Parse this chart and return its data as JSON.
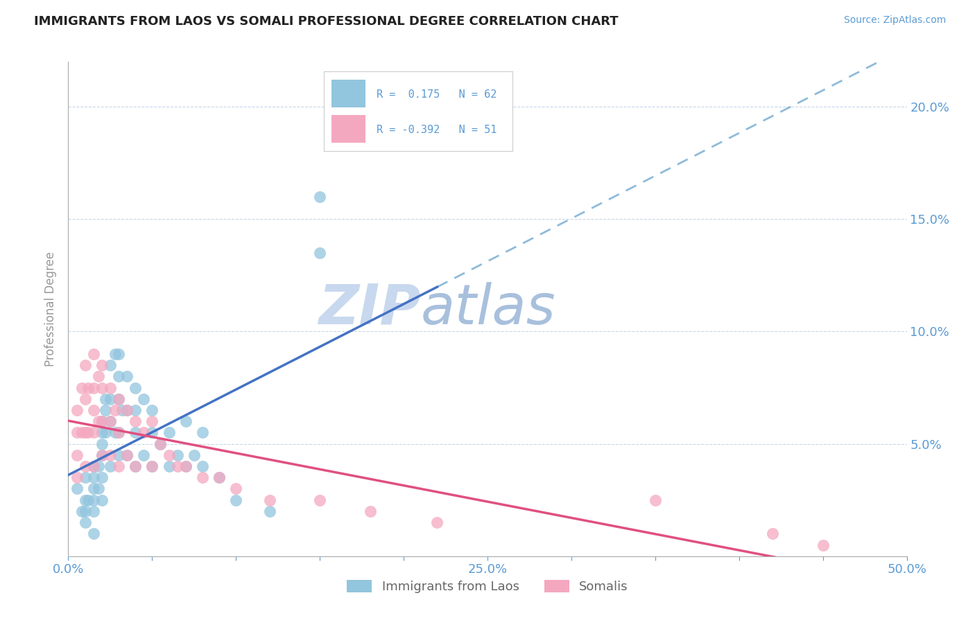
{
  "title": "IMMIGRANTS FROM LAOS VS SOMALI PROFESSIONAL DEGREE CORRELATION CHART",
  "source": "Source: ZipAtlas.com",
  "ylabel": "Professional Degree",
  "xmin": 0.0,
  "xmax": 0.5,
  "ymin": 0.0,
  "ymax": 0.22,
  "yticks": [
    0.0,
    0.05,
    0.1,
    0.15,
    0.2
  ],
  "ytick_labels": [
    "",
    "5.0%",
    "10.0%",
    "15.0%",
    "20.0%"
  ],
  "R_laos": 0.175,
  "N_laos": 62,
  "R_somali": -0.392,
  "N_somali": 51,
  "color_laos": "#92c5de",
  "color_somali": "#f4a8c0",
  "axis_color": "#5b9bd5",
  "watermark_zip_color": "#c8d8ee",
  "watermark_atlas_color": "#b8cce4",
  "background_color": "#ffffff",
  "laos_x": [
    0.005,
    0.008,
    0.01,
    0.01,
    0.01,
    0.01,
    0.012,
    0.015,
    0.015,
    0.015,
    0.015,
    0.015,
    0.015,
    0.018,
    0.018,
    0.02,
    0.02,
    0.02,
    0.02,
    0.02,
    0.02,
    0.022,
    0.022,
    0.022,
    0.025,
    0.025,
    0.025,
    0.025,
    0.028,
    0.028,
    0.03,
    0.03,
    0.03,
    0.03,
    0.03,
    0.032,
    0.035,
    0.035,
    0.035,
    0.04,
    0.04,
    0.04,
    0.04,
    0.045,
    0.045,
    0.05,
    0.05,
    0.05,
    0.055,
    0.06,
    0.06,
    0.065,
    0.07,
    0.07,
    0.075,
    0.08,
    0.08,
    0.09,
    0.1,
    0.12,
    0.15,
    0.15
  ],
  "laos_y": [
    0.03,
    0.02,
    0.035,
    0.025,
    0.02,
    0.015,
    0.025,
    0.04,
    0.035,
    0.03,
    0.025,
    0.02,
    0.01,
    0.04,
    0.03,
    0.06,
    0.055,
    0.05,
    0.045,
    0.035,
    0.025,
    0.07,
    0.065,
    0.055,
    0.085,
    0.07,
    0.06,
    0.04,
    0.09,
    0.055,
    0.09,
    0.08,
    0.07,
    0.055,
    0.045,
    0.065,
    0.08,
    0.065,
    0.045,
    0.075,
    0.065,
    0.055,
    0.04,
    0.07,
    0.045,
    0.065,
    0.055,
    0.04,
    0.05,
    0.055,
    0.04,
    0.045,
    0.06,
    0.04,
    0.045,
    0.055,
    0.04,
    0.035,
    0.025,
    0.02,
    0.16,
    0.135
  ],
  "somali_x": [
    0.005,
    0.005,
    0.005,
    0.005,
    0.008,
    0.008,
    0.01,
    0.01,
    0.01,
    0.01,
    0.012,
    0.012,
    0.015,
    0.015,
    0.015,
    0.015,
    0.015,
    0.018,
    0.018,
    0.02,
    0.02,
    0.02,
    0.02,
    0.025,
    0.025,
    0.025,
    0.028,
    0.03,
    0.03,
    0.03,
    0.035,
    0.035,
    0.04,
    0.04,
    0.045,
    0.05,
    0.05,
    0.055,
    0.06,
    0.065,
    0.07,
    0.08,
    0.09,
    0.1,
    0.12,
    0.15,
    0.18,
    0.22,
    0.35,
    0.42,
    0.45
  ],
  "somali_y": [
    0.065,
    0.055,
    0.045,
    0.035,
    0.075,
    0.055,
    0.085,
    0.07,
    0.055,
    0.04,
    0.075,
    0.055,
    0.09,
    0.075,
    0.065,
    0.055,
    0.04,
    0.08,
    0.06,
    0.085,
    0.075,
    0.06,
    0.045,
    0.075,
    0.06,
    0.045,
    0.065,
    0.07,
    0.055,
    0.04,
    0.065,
    0.045,
    0.06,
    0.04,
    0.055,
    0.06,
    0.04,
    0.05,
    0.045,
    0.04,
    0.04,
    0.035,
    0.035,
    0.03,
    0.025,
    0.025,
    0.02,
    0.015,
    0.025,
    0.01,
    0.005
  ]
}
